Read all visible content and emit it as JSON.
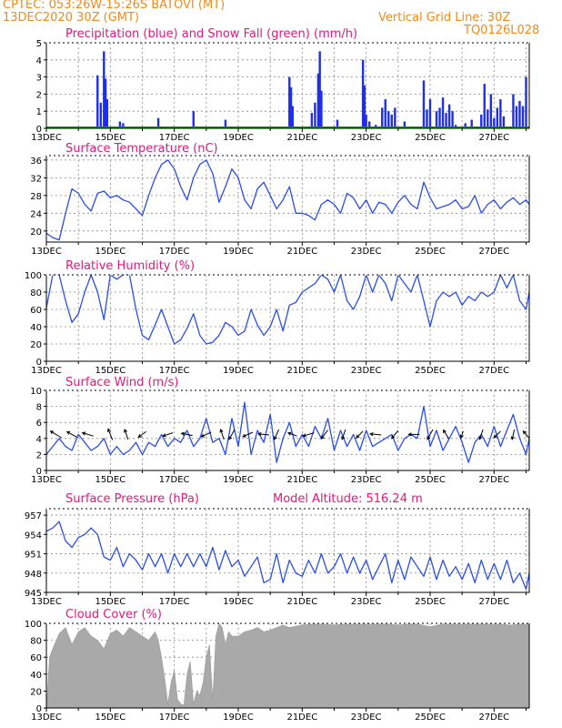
{
  "header": {
    "station": "CPTEC:   053:26W-15:26S  BATOVI (MT)",
    "run": "13DEC2020 30Z (GMT)",
    "grid_note": "Vertical Grid Line: 30Z",
    "code": "TQ0126L028"
  },
  "colors": {
    "precip": "#1f2fe6",
    "snow": "#00a000",
    "line": "#2a4ee8",
    "cloud": "#a9a9a9",
    "title": "#e0197d",
    "header": "#f08a1c",
    "wind_arrow": "#000000"
  },
  "x_axis": {
    "start_day": 13,
    "end_day": 28.1,
    "tick_labels": [
      "13DEC",
      "15DEC",
      "17DEC",
      "19DEC",
      "21DEC",
      "23DEC",
      "25DEC",
      "27DEC"
    ],
    "tick_days": [
      13,
      15,
      17,
      19,
      21,
      23,
      25,
      27
    ]
  },
  "chart_data": [
    {
      "type": "bar",
      "name": "precipitation",
      "title": "Precipitation (blue) and Snow Fall (green) (mm/h)",
      "ylim": [
        0,
        5
      ],
      "yticks": [
        0,
        1,
        2,
        3,
        4,
        5
      ],
      "x": [
        14.6,
        14.7,
        14.8,
        14.85,
        14.9,
        15.3,
        15.4,
        16.5,
        17.6,
        18.6,
        20.6,
        20.65,
        20.7,
        21.3,
        21.4,
        21.5,
        21.55,
        21.6,
        22.1,
        22.9,
        22.95,
        23.0,
        23.1,
        23.3,
        23.5,
        23.6,
        23.7,
        23.8,
        23.9,
        24.2,
        24.8,
        24.9,
        25.0,
        25.2,
        25.3,
        25.4,
        25.5,
        25.6,
        25.7,
        25.8,
        26.1,
        26.3,
        26.6,
        26.7,
        26.8,
        26.9,
        27.0,
        27.1,
        27.2,
        27.3,
        27.6,
        27.7,
        27.8,
        27.9,
        28.0
      ],
      "values": [
        3.1,
        1.5,
        4.5,
        2.9,
        1.7,
        0.4,
        0.3,
        0.6,
        1.0,
        0.5,
        3.0,
        2.4,
        1.3,
        0.9,
        1.5,
        3.2,
        4.5,
        2.2,
        0.5,
        4.0,
        2.5,
        0.8,
        0.4,
        0.2,
        1.2,
        1.7,
        1.0,
        0.8,
        1.2,
        0.4,
        2.8,
        1.1,
        1.7,
        1.0,
        1.2,
        1.8,
        0.9,
        1.4,
        1.0,
        0.2,
        0.3,
        0.5,
        0.8,
        2.6,
        1.1,
        2.0,
        0.6,
        1.2,
        1.7,
        0.7,
        2.0,
        1.3,
        1.6,
        1.3,
        3.0
      ],
      "snow_values": "all 0"
    },
    {
      "type": "line",
      "name": "temperature",
      "title": "Surface Temperature (nC)",
      "ylim": [
        17.5,
        37
      ],
      "yticks": [
        20,
        24,
        28,
        32,
        36
      ],
      "x": [
        13,
        13.2,
        13.4,
        13.6,
        13.8,
        14,
        14.2,
        14.4,
        14.6,
        14.8,
        15,
        15.2,
        15.4,
        15.6,
        15.8,
        16,
        16.2,
        16.4,
        16.6,
        16.8,
        17,
        17.2,
        17.4,
        17.6,
        17.8,
        18,
        18.2,
        18.4,
        18.6,
        18.8,
        19,
        19.2,
        19.4,
        19.6,
        19.8,
        20,
        20.2,
        20.4,
        20.6,
        20.8,
        21,
        21.2,
        21.4,
        21.6,
        21.8,
        22,
        22.2,
        22.4,
        22.6,
        22.8,
        23,
        23.2,
        23.4,
        23.6,
        23.8,
        24,
        24.2,
        24.4,
        24.6,
        24.8,
        25,
        25.2,
        25.4,
        25.6,
        25.8,
        26,
        26.2,
        26.4,
        26.6,
        26.8,
        27,
        27.2,
        27.4,
        27.6,
        27.8,
        28,
        28.1
      ],
      "values": [
        19.5,
        18.5,
        18.0,
        24,
        29.5,
        28.5,
        26,
        24.5,
        28.5,
        29,
        27.5,
        28,
        27,
        26.5,
        25,
        23.5,
        28,
        32,
        35,
        36,
        34,
        30,
        27,
        32,
        35,
        36,
        33,
        26.5,
        30,
        34,
        32,
        27,
        25,
        29.5,
        31,
        28,
        25,
        27,
        30,
        24,
        24,
        23.5,
        22.5,
        26,
        27,
        26,
        24,
        28.5,
        27.5,
        25,
        27,
        24,
        26.5,
        26,
        24,
        26.5,
        28,
        26,
        25,
        31,
        27.5,
        25,
        25.5,
        26,
        27,
        25,
        25.5,
        28,
        24,
        26,
        27,
        25,
        26.5,
        27.5,
        26,
        27,
        26
      ]
    },
    {
      "type": "line",
      "name": "humidity",
      "title": "Relative Humidity (%)",
      "ylim": [
        0,
        100
      ],
      "yticks": [
        0,
        20,
        40,
        60,
        80,
        100
      ],
      "x": [
        13,
        13.2,
        13.4,
        13.6,
        13.8,
        14,
        14.2,
        14.4,
        14.6,
        14.8,
        15,
        15.2,
        15.4,
        15.6,
        15.8,
        16,
        16.2,
        16.4,
        16.6,
        16.8,
        17,
        17.2,
        17.4,
        17.6,
        17.8,
        18,
        18.2,
        18.4,
        18.6,
        18.8,
        19,
        19.2,
        19.4,
        19.6,
        19.8,
        20,
        20.2,
        20.4,
        20.6,
        20.8,
        21,
        21.2,
        21.4,
        21.6,
        21.8,
        22,
        22.2,
        22.4,
        22.6,
        22.8,
        23,
        23.2,
        23.4,
        23.6,
        23.8,
        24,
        24.2,
        24.4,
        24.6,
        24.8,
        25,
        25.2,
        25.4,
        25.6,
        25.8,
        26,
        26.2,
        26.4,
        26.6,
        26.8,
        27,
        27.2,
        27.4,
        27.6,
        27.8,
        28,
        28.1
      ],
      "values": [
        62,
        100,
        100,
        70,
        45,
        55,
        80,
        100,
        80,
        48,
        100,
        95,
        100,
        100,
        60,
        30,
        25,
        42,
        60,
        40,
        20,
        25,
        38,
        55,
        30,
        20,
        22,
        30,
        45,
        40,
        30,
        35,
        60,
        42,
        30,
        40,
        60,
        35,
        65,
        68,
        80,
        85,
        90,
        100,
        95,
        80,
        100,
        70,
        60,
        75,
        100,
        80,
        100,
        90,
        70,
        100,
        90,
        80,
        100,
        70,
        40,
        70,
        80,
        75,
        80,
        65,
        75,
        70,
        80,
        75,
        80,
        100,
        85,
        100,
        70,
        60,
        80
      ]
    },
    {
      "type": "line",
      "name": "wind",
      "title": "Surface Wind (m/s)",
      "ylim": [
        0,
        10
      ],
      "yticks": [
        0,
        2,
        4,
        6,
        8,
        10
      ],
      "x": [
        13,
        13.2,
        13.4,
        13.6,
        13.8,
        14,
        14.2,
        14.4,
        14.6,
        14.8,
        15,
        15.2,
        15.4,
        15.6,
        15.8,
        16,
        16.2,
        16.4,
        16.6,
        16.8,
        17,
        17.2,
        17.4,
        17.6,
        17.8,
        18,
        18.2,
        18.4,
        18.6,
        18.8,
        19,
        19.2,
        19.4,
        19.6,
        19.8,
        20,
        20.2,
        20.4,
        20.6,
        20.8,
        21,
        21.2,
        21.4,
        21.6,
        21.8,
        22,
        22.2,
        22.4,
        22.6,
        22.8,
        23,
        23.2,
        23.4,
        23.6,
        23.8,
        24,
        24.2,
        24.4,
        24.6,
        24.8,
        25,
        25.2,
        25.4,
        25.6,
        25.8,
        26,
        26.2,
        26.4,
        26.6,
        26.8,
        27,
        27.2,
        27.4,
        27.6,
        27.8,
        28,
        28.1
      ],
      "values": [
        2.0,
        3.0,
        4.0,
        3.0,
        2.5,
        4.5,
        3.5,
        2.5,
        3.0,
        4.0,
        2.0,
        3.0,
        2.0,
        2.5,
        3.5,
        2.0,
        3.5,
        3.0,
        4.5,
        3.0,
        4.0,
        3.5,
        5.0,
        3.0,
        4.0,
        6.5,
        3.5,
        4.0,
        2.0,
        6.5,
        3.0,
        8.5,
        2.0,
        5.0,
        3.5,
        7.0,
        1.0,
        4.0,
        6.0,
        3.0,
        4.5,
        3.0,
        5.5,
        4.0,
        6.5,
        2.5,
        5.0,
        3.0,
        4.5,
        2.5,
        5.0,
        3.0,
        3.5,
        4.0,
        4.5,
        2.5,
        4.0,
        4.5,
        4.0,
        8.0,
        3.0,
        5.0,
        2.5,
        4.0,
        5.5,
        3.5,
        1.0,
        3.5,
        4.5,
        3.0,
        5.5,
        3.0,
        5.0,
        7.0,
        4.0,
        2.0,
        4.0
      ],
      "arrows": [
        {
          "x": 13.3,
          "u": -1,
          "v": 0.6
        },
        {
          "x": 13.8,
          "u": -0.9,
          "v": 0.5
        },
        {
          "x": 14.3,
          "u": -1,
          "v": 0.3
        },
        {
          "x": 15.0,
          "u": -0.4,
          "v": 1
        },
        {
          "x": 15.5,
          "u": -0.3,
          "v": 0.9
        },
        {
          "x": 16.0,
          "u": -0.7,
          "v": -0.5
        },
        {
          "x": 16.8,
          "u": -0.9,
          "v": -0.3
        },
        {
          "x": 17.4,
          "u": -1,
          "v": 0.2
        },
        {
          "x": 18.0,
          "u": -0.9,
          "v": -0.4
        },
        {
          "x": 18.5,
          "u": -0.3,
          "v": 0.9
        },
        {
          "x": 18.8,
          "u": -0.5,
          "v": -0.9
        },
        {
          "x": 19.3,
          "u": -0.9,
          "v": -0.4
        },
        {
          "x": 19.8,
          "u": -1,
          "v": 0.1
        },
        {
          "x": 20.2,
          "u": -0.4,
          "v": -0.9
        },
        {
          "x": 20.7,
          "u": -0.8,
          "v": 0.3
        },
        {
          "x": 21.2,
          "u": -1,
          "v": -0.3
        },
        {
          "x": 21.7,
          "u": -0.6,
          "v": -0.8
        },
        {
          "x": 22.3,
          "u": -0.3,
          "v": -0.9
        },
        {
          "x": 22.8,
          "u": -0.6,
          "v": -0.6
        },
        {
          "x": 23.3,
          "u": -1,
          "v": 0.1
        },
        {
          "x": 23.9,
          "u": -0.6,
          "v": -0.7
        },
        {
          "x": 24.5,
          "u": -1,
          "v": 0
        },
        {
          "x": 25.0,
          "u": -0.5,
          "v": -0.9
        },
        {
          "x": 25.5,
          "u": -0.5,
          "v": 0.8
        },
        {
          "x": 26.0,
          "u": -0.2,
          "v": -0.6
        },
        {
          "x": 26.6,
          "u": -0.3,
          "v": -0.9
        },
        {
          "x": 27.1,
          "u": -0.6,
          "v": -0.6
        },
        {
          "x": 27.6,
          "u": -0.2,
          "v": -0.9
        },
        {
          "x": 28.0,
          "u": -0.5,
          "v": 0.6
        }
      ]
    },
    {
      "type": "line",
      "name": "pressure",
      "title": "Surface Pressure (hPa)",
      "subtitle": "Model Altitude: 516.24 m",
      "ylim": [
        945,
        958
      ],
      "yticks": [
        945,
        948,
        951,
        954,
        957
      ],
      "x": [
        13,
        13.2,
        13.4,
        13.6,
        13.8,
        14,
        14.2,
        14.4,
        14.6,
        14.8,
        15,
        15.2,
        15.4,
        15.6,
        15.8,
        16,
        16.2,
        16.4,
        16.6,
        16.8,
        17,
        17.2,
        17.4,
        17.6,
        17.8,
        18,
        18.2,
        18.4,
        18.6,
        18.8,
        19,
        19.2,
        19.4,
        19.6,
        19.8,
        20,
        20.2,
        20.4,
        20.6,
        20.8,
        21,
        21.2,
        21.4,
        21.6,
        21.8,
        22,
        22.2,
        22.4,
        22.6,
        22.8,
        23,
        23.2,
        23.4,
        23.6,
        23.8,
        24,
        24.2,
        24.4,
        24.6,
        24.8,
        25,
        25.2,
        25.4,
        25.6,
        25.8,
        26,
        26.2,
        26.4,
        26.6,
        26.8,
        27,
        27.2,
        27.4,
        27.6,
        27.8,
        28,
        28.1
      ],
      "values": [
        954.5,
        955,
        956,
        953,
        952,
        953.5,
        954,
        955,
        954,
        950.5,
        950,
        952,
        949,
        951,
        950,
        948.5,
        951,
        949,
        951,
        948,
        951,
        949,
        951,
        949,
        951,
        949,
        952,
        948.5,
        951.5,
        949,
        950,
        947.5,
        949,
        950.5,
        946.5,
        947,
        951,
        946.5,
        950,
        948,
        947.5,
        950,
        948,
        951,
        948,
        949,
        951,
        948,
        950.5,
        948,
        950,
        947,
        949,
        951,
        946.5,
        950,
        947,
        950.5,
        949,
        947.5,
        950.5,
        947,
        950,
        947.5,
        949,
        947,
        949.5,
        946.5,
        950,
        947,
        949.5,
        947,
        950,
        946.5,
        948,
        945.5,
        948
      ]
    },
    {
      "type": "area",
      "name": "cloud",
      "title": "Cloud Cover (%)",
      "ylim": [
        0,
        100
      ],
      "yticks": [
        0,
        20,
        40,
        60,
        80,
        100
      ],
      "x": [
        13,
        13.1,
        13.2,
        13.4,
        13.6,
        13.8,
        14,
        14.2,
        14.4,
        14.6,
        14.8,
        15,
        15.2,
        15.4,
        15.6,
        15.8,
        16,
        16.2,
        16.4,
        16.5,
        16.6,
        16.7,
        16.8,
        16.9,
        17,
        17.1,
        17.2,
        17.3,
        17.4,
        17.5,
        17.6,
        17.7,
        17.8,
        17.9,
        18,
        18.1,
        18.2,
        18.3,
        18.4,
        18.5,
        18.6,
        18.7,
        18.8,
        19,
        19.2,
        19.4,
        19.6,
        19.8,
        20,
        20.2,
        20.4,
        20.6,
        21,
        21.5,
        22,
        22.5,
        23,
        23.5,
        24,
        24.5,
        25,
        25.5,
        26,
        26.5,
        27,
        27.5,
        28,
        28.1
      ],
      "values": [
        0,
        60,
        70,
        88,
        95,
        75,
        90,
        95,
        85,
        80,
        70,
        88,
        92,
        85,
        95,
        90,
        85,
        80,
        90,
        80,
        60,
        35,
        5,
        30,
        45,
        10,
        5,
        3,
        40,
        55,
        5,
        20,
        15,
        30,
        60,
        75,
        10,
        85,
        100,
        95,
        75,
        90,
        85,
        85,
        90,
        92,
        95,
        90,
        92,
        95,
        98,
        95,
        98,
        100,
        98,
        100,
        99,
        100,
        98,
        100,
        96,
        100,
        100,
        99,
        100,
        98,
        100,
        100
      ]
    }
  ]
}
